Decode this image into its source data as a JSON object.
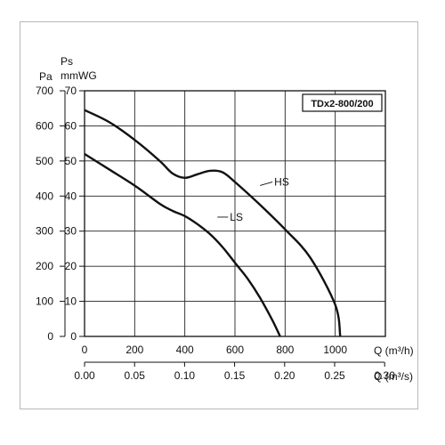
{
  "chart_data": {
    "type": "line",
    "title": "",
    "model_label": "TDx2-800/200",
    "y_left": {
      "unit_top": "Pa",
      "ticks": [
        0,
        100,
        200,
        300,
        400,
        500,
        600,
        700
      ],
      "range": [
        0,
        700
      ]
    },
    "y_right": {
      "unit_top_1": "Ps",
      "unit_top_2": "mmWG",
      "ticks": [
        0,
        10,
        20,
        30,
        40,
        50,
        60,
        70
      ],
      "range": [
        0,
        70
      ]
    },
    "x_bottom_1": {
      "unit": "Q (m³/h)",
      "ticks": [
        0,
        200,
        400,
        600,
        800,
        1000
      ],
      "range": [
        0,
        1200
      ]
    },
    "x_bottom_2": {
      "unit": "Q (m³/s)",
      "ticks": [
        "0.00",
        "0.05",
        "0.10",
        "0.15",
        "0.20",
        "0.25",
        "0.30"
      ]
    },
    "grid": true,
    "series": [
      {
        "name": "HS",
        "x": [
          0,
          100,
          200,
          300,
          350,
          400,
          450,
          500,
          550,
          600,
          700,
          800,
          900,
          1000,
          1020
        ],
        "y": [
          645,
          610,
          560,
          500,
          465,
          452,
          462,
          472,
          468,
          440,
          375,
          305,
          225,
          90,
          0
        ]
      },
      {
        "name": "LS",
        "x": [
          0,
          100,
          200,
          300,
          350,
          400,
          450,
          500,
          550,
          600,
          650,
          700,
          750,
          780
        ],
        "y": [
          520,
          475,
          430,
          378,
          358,
          343,
          320,
          292,
          255,
          210,
          165,
          110,
          45,
          0
        ]
      }
    ]
  }
}
